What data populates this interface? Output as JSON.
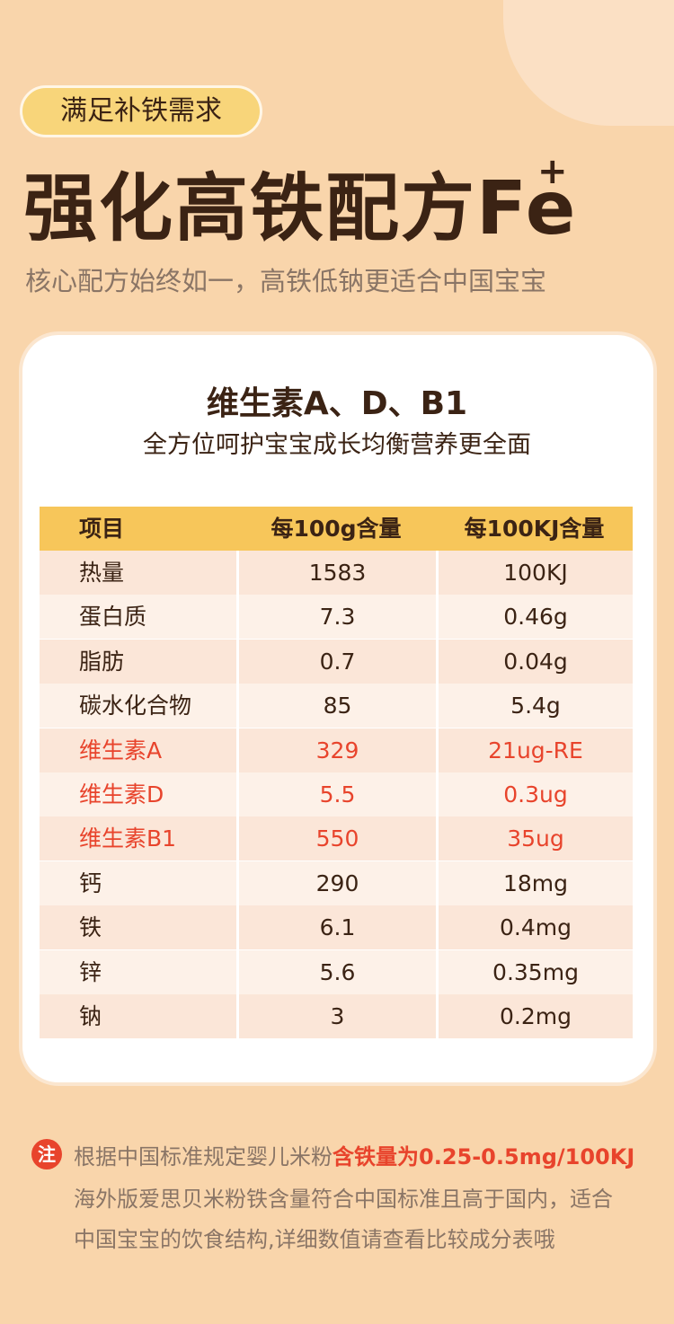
{
  "header": {
    "tag": "满足补铁需求",
    "title": "强化高铁配方Fe",
    "title_sup": "+",
    "subtitle": "核心配方始终如一，高铁低钠更适合中国宝宝"
  },
  "card": {
    "heading": "维生素A、D、B1",
    "subheading": "全方位呵护宝宝成长均衡营养更全面"
  },
  "table": {
    "header": [
      "项目",
      "每100g含量",
      "每100KJ含量"
    ],
    "rows": [
      [
        "热量",
        "1583",
        "100KJ"
      ],
      [
        "蛋白质",
        "7.3",
        "0.46g"
      ],
      [
        "脂肪",
        "0.7",
        "0.04g"
      ],
      [
        "碳水化合物",
        "85",
        "5.4g"
      ],
      [
        "维生素A",
        "329",
        "21ug-RE"
      ],
      [
        "维生素D",
        "5.5",
        "0.3ug"
      ],
      [
        "维生素B1",
        "550",
        "35ug"
      ],
      [
        "钙",
        "290",
        "18mg"
      ],
      [
        "铁",
        "6.1",
        "0.4mg"
      ],
      [
        "锌",
        "5.6",
        "0.35mg"
      ],
      [
        "钠",
        "3",
        "0.2mg"
      ]
    ],
    "highlight_rows": [
      4,
      5,
      6
    ],
    "highlight_color": "#e8442c"
  },
  "note": {
    "badge": "注",
    "line1": [
      "根据中国标准规定婴儿米粉",
      "含铁量为0.25-0.5mg/100KJ"
    ],
    "line2": "海外版爱思贝米粉铁含量符合中国标准且高于国内，适合",
    "line3": "中国宝宝的饮食结构,详细数值请查看比较成分表哦"
  }
}
